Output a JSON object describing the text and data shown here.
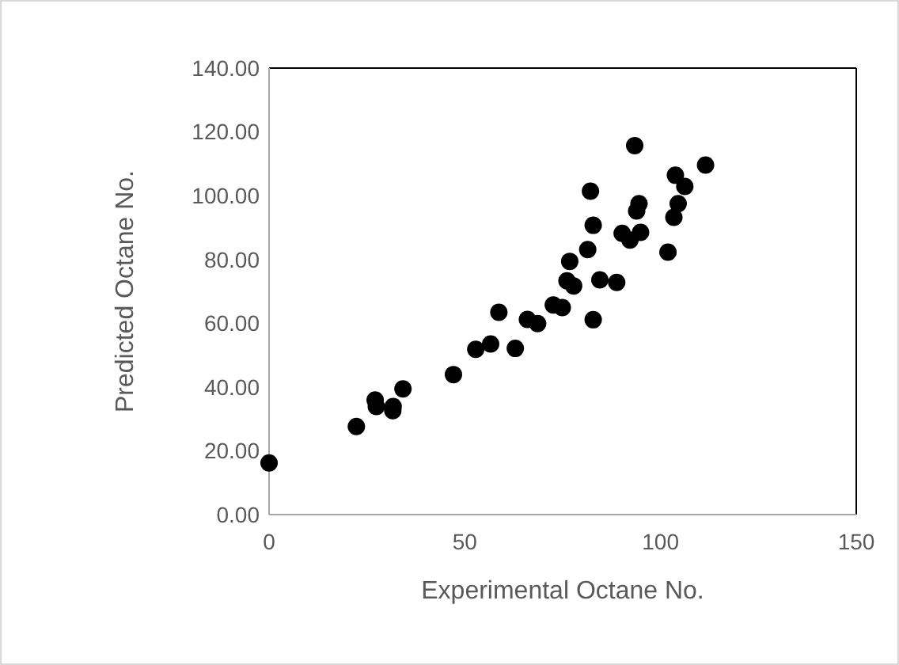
{
  "chart_data": {
    "type": "scatter",
    "xlabel": "Experimental Octane No.",
    "ylabel": "Predicted Octane No.",
    "xlim": [
      0,
      150
    ],
    "xticks": [
      0,
      50,
      100,
      150
    ],
    "ylim": [
      0,
      140
    ],
    "yticks": [
      {
        "value": 0,
        "label": "0.00"
      },
      {
        "value": 20,
        "label": "20.00"
      },
      {
        "value": 40,
        "label": "40.00"
      },
      {
        "value": 60,
        "label": "60.00"
      },
      {
        "value": 80,
        "label": "80.00"
      },
      {
        "value": 100,
        "label": "100.00"
      },
      {
        "value": 120,
        "label": "120.00"
      },
      {
        "value": 140,
        "label": "140.00"
      }
    ],
    "grid": false,
    "marker": "circle",
    "series": [
      {
        "color": "#000000",
        "x": [
          0,
          22.3,
          27.1,
          27.4,
          31.6,
          31.7,
          34.2,
          47.1,
          52.8,
          56.6,
          58.7,
          62.9,
          66.0,
          68.6,
          72.6,
          74.9,
          76.8,
          76.1,
          77.8,
          81.4,
          82.1,
          82.8,
          82.8,
          84.5,
          88.8,
          93.4,
          90.2,
          92.2,
          94.9,
          93.9,
          94.5,
          101.9,
          103.4,
          104.5,
          103.8,
          106.2,
          111.5
        ],
        "values": [
          16.2,
          27.6,
          35.9,
          33.9,
          32.6,
          33.9,
          39.4,
          43.9,
          51.8,
          53.5,
          63.4,
          52.1,
          61.2,
          59.9,
          65.7,
          64.9,
          79.4,
          73.3,
          71.7,
          83.1,
          101.4,
          90.7,
          61.1,
          73.6,
          72.8,
          115.7,
          88.2,
          86.1,
          88.5,
          95.2,
          97.5,
          82.3,
          93.2,
          97.5,
          106.4,
          102.9,
          109.6
        ]
      }
    ]
  }
}
